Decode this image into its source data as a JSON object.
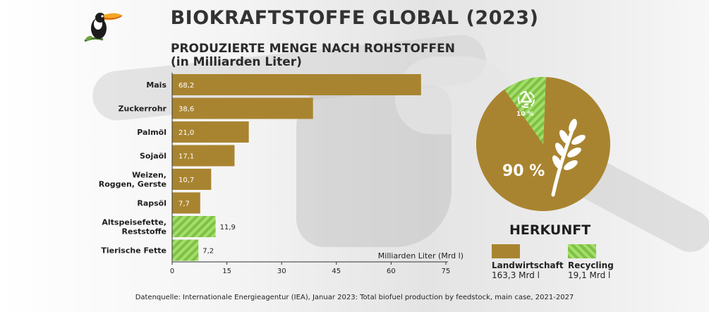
{
  "title": "BIOKRAFTSTOFFE GLOBAL (2023)",
  "subtitle_line1": "PRODUZIERTE MENGE NACH ROHSTOFFEN",
  "subtitle_line2": "(in Milliarden Liter)",
  "source": "Datenquelle: Internationale Energieagentur (IEA), Januar 2023: Total biofuel production by feedstock, main case, 2021-2027",
  "colors": {
    "agriculture": "#a98430",
    "recycling": "#7dc242",
    "recycling_stripe": "#a6dd6e"
  },
  "chart_data": [
    {
      "type": "bar",
      "orientation": "horizontal",
      "categories": [
        "Mais",
        "Zuckerrohr",
        "Palmöl",
        "Sojaöl",
        "Weizen, Roggen, Gerste",
        "Rapsöl",
        "Altspeisefette, Reststoffe",
        "Tierische Fette"
      ],
      "category_lines": [
        [
          "Mais"
        ],
        [
          "Zuckerrohr"
        ],
        [
          "Palmöl"
        ],
        [
          "Sojaöl"
        ],
        [
          "Weizen,",
          "Roggen, Gerste"
        ],
        [
          "Rapsöl"
        ],
        [
          "Altspeisefette,",
          "Reststoffe"
        ],
        [
          "Tierische Fette"
        ]
      ],
      "values": [
        68.2,
        38.6,
        21.0,
        17.1,
        10.7,
        7.7,
        11.9,
        7.2
      ],
      "value_labels": [
        "68,2",
        "38,6",
        "21,0",
        "17,1",
        "10,7",
        "7,7",
        "11,9",
        "7,2"
      ],
      "groups": [
        "agriculture",
        "agriculture",
        "agriculture",
        "agriculture",
        "agriculture",
        "agriculture",
        "recycling",
        "recycling"
      ],
      "xlabel": "Milliarden Liter (Mrd l)",
      "xlim": [
        0,
        75
      ],
      "xticks": [
        0,
        15,
        30,
        45,
        60,
        75
      ]
    },
    {
      "type": "pie",
      "title": "HERKUNFT",
      "slices": [
        {
          "name": "Landwirtschaft",
          "value": 163.3,
          "value_label": "163,3 Mrd l",
          "percent": 90,
          "percent_label": "90 %"
        },
        {
          "name": "Recycling",
          "value": 19.1,
          "value_label": "19,1 Mrd l",
          "percent": 10,
          "percent_label": "10 %"
        }
      ]
    }
  ],
  "icons": {
    "logo": "toucan-icon",
    "recycle": "recycle-icon",
    "wheat": "wheat-icon"
  }
}
